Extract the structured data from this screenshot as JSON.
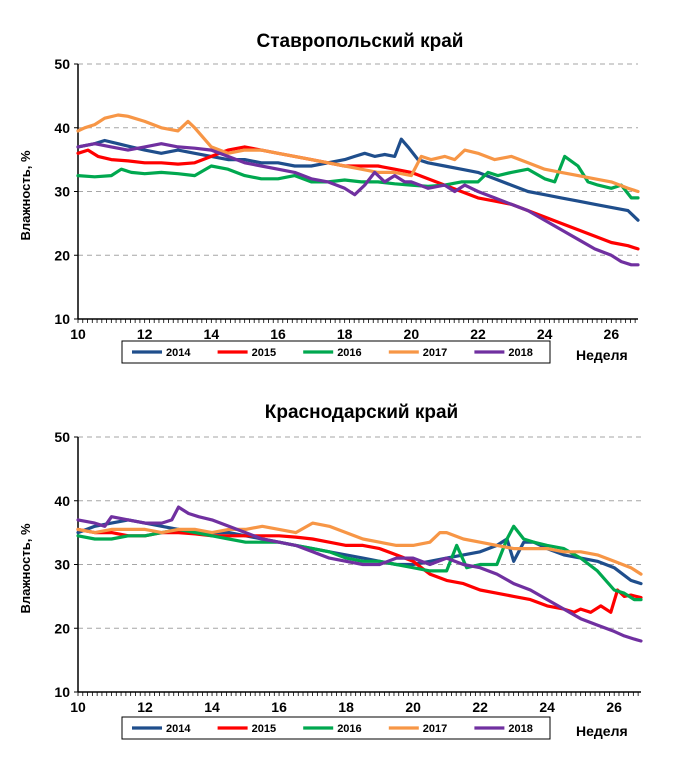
{
  "chart_data": [
    {
      "type": "line",
      "title": "Ставропольский край",
      "xlabel": "Неделя",
      "ylabel": "Влажность, %",
      "xlim": [
        10,
        26.8
      ],
      "ylim": [
        10,
        50
      ],
      "xticks": [
        10,
        12,
        14,
        16,
        18,
        20,
        22,
        24,
        26
      ],
      "yticks": [
        10,
        20,
        30,
        40,
        50
      ],
      "grid": "horizontal dashed",
      "legend_position": "bottom",
      "series": [
        {
          "name": "2014",
          "color": "#1F4E8C",
          "x": [
            10,
            10.5,
            10.8,
            11.2,
            11.6,
            12,
            12.5,
            13,
            13.5,
            14,
            14.5,
            15,
            15.5,
            16,
            16.5,
            17,
            17.5,
            18,
            18.3,
            18.6,
            18.9,
            19.2,
            19.5,
            19.7,
            19.9,
            20.2,
            20.5,
            21,
            21.5,
            22,
            22.5,
            23,
            23.5,
            24,
            24.5,
            25,
            25.5,
            26,
            26.5,
            26.8
          ],
          "y": [
            37,
            37.5,
            38,
            37.5,
            37,
            36.5,
            36,
            36.5,
            36,
            35.5,
            35,
            35,
            34.5,
            34.5,
            34,
            34,
            34.5,
            35,
            35.5,
            36,
            35.5,
            35.8,
            35.5,
            38.2,
            37,
            35,
            34.5,
            34,
            33.5,
            33,
            32,
            31,
            30,
            29.5,
            29,
            28.5,
            28,
            27.5,
            27,
            25.5
          ]
        },
        {
          "name": "2015",
          "color": "#FF0000",
          "x": [
            10,
            10.3,
            10.6,
            11,
            11.5,
            12,
            12.5,
            13,
            13.5,
            14,
            14.5,
            15,
            15.5,
            16,
            16.5,
            17,
            17.5,
            18,
            18.5,
            19,
            19.5,
            20,
            20.5,
            21,
            21.5,
            22,
            22.5,
            23,
            23.5,
            24,
            24.5,
            25,
            25.5,
            26,
            26.5,
            26.8
          ],
          "y": [
            36,
            36.5,
            35.5,
            35,
            34.8,
            34.5,
            34.5,
            34.3,
            34.5,
            35.5,
            36.5,
            37,
            36.5,
            36,
            35.5,
            35,
            34.5,
            34,
            34,
            34,
            33.5,
            33,
            32,
            31,
            30,
            29,
            28.5,
            28,
            27,
            26,
            25,
            24,
            23,
            22,
            21.5,
            21
          ]
        },
        {
          "name": "2016",
          "color": "#00A84F",
          "x": [
            10,
            10.5,
            11,
            11.3,
            11.6,
            12,
            12.5,
            13,
            13.5,
            14,
            14.5,
            15,
            15.5,
            16,
            16.5,
            17,
            17.5,
            18,
            18.5,
            19,
            19.5,
            20,
            20.5,
            21,
            21.5,
            22,
            22.3,
            22.6,
            23,
            23.5,
            24,
            24.3,
            24.6,
            25,
            25.3,
            25.6,
            26,
            26.3,
            26.6,
            26.8
          ],
          "y": [
            32.5,
            32.3,
            32.5,
            33.5,
            33,
            32.8,
            33,
            32.8,
            32.5,
            34,
            33.5,
            32.5,
            32,
            32,
            32.5,
            31.5,
            31.5,
            31.8,
            31.5,
            31.5,
            31.2,
            31,
            30.8,
            31,
            31.5,
            31.5,
            33,
            32.5,
            33,
            33.5,
            32,
            31.5,
            35.5,
            34,
            31.5,
            31,
            30.5,
            31,
            29,
            29
          ]
        },
        {
          "name": "2017",
          "color": "#F79646",
          "x": [
            10,
            10.2,
            10.5,
            10.8,
            11.2,
            11.5,
            12,
            12.5,
            13,
            13.3,
            13.5,
            14,
            14.5,
            15,
            15.5,
            16,
            16.5,
            17,
            17.5,
            18,
            18.5,
            19,
            19.5,
            20,
            20.3,
            20.6,
            21,
            21.3,
            21.6,
            22,
            22.5,
            23,
            23.5,
            24,
            24.5,
            25,
            25.5,
            26,
            26.5,
            26.8
          ],
          "y": [
            39.5,
            40,
            40.5,
            41.5,
            42,
            41.8,
            41,
            40,
            39.5,
            41,
            40,
            37,
            36,
            36.5,
            36.5,
            36,
            35.5,
            35,
            34.5,
            34,
            33.5,
            33,
            33,
            32.5,
            35.5,
            35,
            35.5,
            35,
            36.5,
            36,
            35,
            35.5,
            34.5,
            33.5,
            33,
            32.5,
            32,
            31.5,
            30.5,
            30
          ]
        },
        {
          "name": "2018",
          "color": "#7030A0",
          "x": [
            10,
            10.5,
            11,
            11.5,
            12,
            12.5,
            13,
            13.5,
            14,
            14.5,
            15,
            15.5,
            16,
            16.5,
            17,
            17.5,
            18,
            18.3,
            18.6,
            18.9,
            19.2,
            19.5,
            19.8,
            20,
            20.5,
            21,
            21.3,
            21.6,
            22,
            22.5,
            23,
            23.5,
            24,
            24.5,
            25,
            25.5,
            26,
            26.3,
            26.6,
            26.8
          ],
          "y": [
            37,
            37.5,
            37,
            36.5,
            37,
            37.5,
            37,
            36.8,
            36.5,
            35.5,
            34.5,
            34,
            33.5,
            33,
            32,
            31.5,
            30.5,
            29.5,
            31,
            33,
            31.5,
            32.5,
            31.5,
            31.5,
            30.5,
            31,
            30,
            31,
            30,
            29,
            28,
            27,
            25.5,
            24,
            22.5,
            21,
            20,
            19,
            18.5,
            18.5
          ]
        }
      ]
    },
    {
      "type": "line",
      "title": "Краснодарский край",
      "xlabel": "Неделя",
      "ylabel": "Влажность, %",
      "xlim": [
        10,
        26.8
      ],
      "ylim": [
        10,
        50
      ],
      "xticks": [
        10,
        12,
        14,
        16,
        18,
        20,
        22,
        24,
        26
      ],
      "yticks": [
        10,
        20,
        30,
        40,
        50
      ],
      "grid": "horizontal dashed",
      "legend_position": "bottom",
      "series": [
        {
          "name": "2014",
          "color": "#1F4E8C",
          "x": [
            10,
            10.5,
            11,
            11.5,
            12,
            12.5,
            13,
            13.5,
            14,
            14.5,
            15,
            15.5,
            16,
            16.5,
            17,
            17.5,
            18,
            18.5,
            19,
            19.5,
            20,
            20.5,
            21,
            21.5,
            22,
            22.5,
            22.8,
            23,
            23.3,
            23.6,
            24,
            24.5,
            25,
            25.5,
            26,
            26.5,
            26.8
          ],
          "y": [
            35,
            36,
            36.5,
            37,
            36.5,
            36,
            35.5,
            35,
            35,
            35,
            34.5,
            34,
            33.5,
            33,
            32.5,
            32,
            31.5,
            31,
            30.5,
            30,
            30,
            30.5,
            31,
            31.5,
            32,
            33,
            34,
            30.5,
            33.5,
            33.5,
            32.5,
            31.5,
            31,
            30.5,
            29.5,
            27.5,
            27
          ]
        },
        {
          "name": "2015",
          "color": "#FF0000",
          "x": [
            10,
            10.5,
            11,
            11.5,
            12,
            12.5,
            13,
            13.5,
            14,
            14.5,
            15,
            15.5,
            16,
            16.5,
            17,
            17.5,
            18,
            18.5,
            19,
            19.5,
            20,
            20.5,
            21,
            21.5,
            22,
            22.5,
            23,
            23.5,
            24,
            24.5,
            24.8,
            25,
            25.3,
            25.6,
            25.9,
            26.1,
            26.3,
            26.5,
            26.8
          ],
          "y": [
            35.5,
            35,
            35,
            34.5,
            34.5,
            35,
            35,
            34.8,
            34.5,
            34.5,
            34.5,
            34.5,
            34.5,
            34.3,
            34,
            33.5,
            33,
            33,
            32.5,
            31.5,
            30.5,
            28.5,
            27.5,
            27,
            26,
            25.5,
            25,
            24.5,
            23.5,
            23,
            22.5,
            23,
            22.5,
            23.5,
            22.5,
            26,
            25,
            25.2,
            24.8
          ]
        },
        {
          "name": "2016",
          "color": "#00A84F",
          "x": [
            10,
            10.5,
            11,
            11.5,
            12,
            12.5,
            13,
            13.5,
            14,
            14.5,
            15,
            15.5,
            16,
            16.5,
            17,
            17.5,
            18,
            18.5,
            19,
            19.5,
            20,
            20.5,
            21,
            21.3,
            21.6,
            22,
            22.5,
            22.8,
            23,
            23.3,
            23.6,
            24,
            24.5,
            25,
            25.5,
            26,
            26.3,
            26.6,
            26.8
          ],
          "y": [
            34.5,
            34,
            34,
            34.5,
            34.5,
            35,
            35.5,
            35,
            34.5,
            34,
            33.5,
            33.5,
            33.5,
            33,
            32.5,
            32,
            31,
            30.5,
            30.5,
            30,
            29.5,
            29,
            29,
            33,
            29.5,
            30,
            30,
            34,
            36,
            34,
            33.5,
            33,
            32.5,
            31,
            29,
            26,
            25.5,
            24.5,
            24.5
          ]
        },
        {
          "name": "2017",
          "color": "#F79646",
          "x": [
            10,
            10.5,
            11,
            11.5,
            12,
            12.5,
            13,
            13.5,
            14,
            14.5,
            15,
            15.5,
            16,
            16.5,
            17,
            17.5,
            18,
            18.5,
            19,
            19.5,
            20,
            20.5,
            20.8,
            21,
            21.5,
            22,
            22.5,
            23,
            23.5,
            24,
            24.5,
            25,
            25.5,
            26,
            26.5,
            26.8
          ],
          "y": [
            35.5,
            35,
            35.5,
            35.5,
            35.5,
            35,
            35.5,
            35.5,
            35,
            35.5,
            35.5,
            36,
            35.5,
            35,
            36.5,
            36,
            35,
            34,
            33.5,
            33,
            33,
            33.5,
            35,
            35,
            34,
            33.5,
            33,
            32.5,
            32.5,
            32.5,
            32,
            32,
            31.5,
            30.5,
            29.5,
            28.5
          ]
        },
        {
          "name": "2018",
          "color": "#7030A0",
          "x": [
            10,
            10.5,
            10.8,
            11,
            11.5,
            12,
            12.5,
            12.8,
            13,
            13.3,
            13.6,
            14,
            14.5,
            15,
            15.5,
            16,
            16.5,
            17,
            17.5,
            18,
            18.5,
            19,
            19.5,
            20,
            20.5,
            21,
            21.5,
            22,
            22.5,
            23,
            23.5,
            24,
            24.5,
            25,
            25.5,
            26,
            26.3,
            26.6,
            26.8
          ],
          "y": [
            37,
            36.5,
            36,
            37.5,
            37,
            36.5,
            36.5,
            37,
            39,
            38,
            37.5,
            37,
            36,
            35,
            34,
            33.5,
            33,
            32,
            31,
            30.5,
            30,
            30,
            31,
            31,
            30,
            31,
            30,
            29.5,
            28.5,
            27,
            26,
            24.5,
            23,
            21.5,
            20.5,
            19.5,
            18.8,
            18.3,
            18
          ]
        }
      ]
    }
  ]
}
